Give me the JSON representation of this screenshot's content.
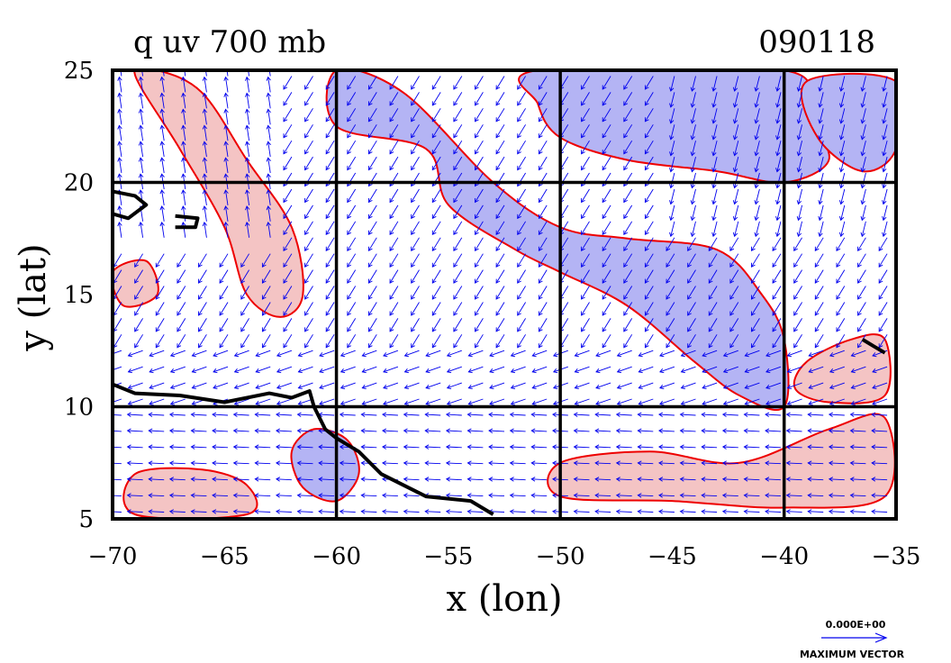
{
  "chart_data": {
    "type": "vector-contour-map",
    "title": "q uv 700 mb",
    "date_label": "090118",
    "xlabel": "x (lon)",
    "ylabel": "y (lat)",
    "xlim": [
      -70,
      -35
    ],
    "ylim": [
      5,
      25
    ],
    "xticks": [
      -70,
      -65,
      -60,
      -55,
      -50,
      -45,
      -40,
      -35
    ],
    "yticks": [
      5,
      10,
      15,
      20,
      25
    ],
    "grid_lines_x": [
      -60,
      -50,
      -40
    ],
    "grid_lines_y": [
      10,
      20
    ],
    "vector_legend": {
      "value": "0.000E+00",
      "label": "MAXIMUM VECTOR"
    },
    "colors": {
      "vectors": "#0000ee",
      "contour_lines": "#ee0000",
      "low_fill": "#b4b4f4",
      "high_fill": "#f4c4c4",
      "coastline": "#000000"
    },
    "regions": {
      "low": [
        [
          [
            -60,
            22.5
          ],
          [
            -56,
            21.5
          ],
          [
            -55,
            19
          ],
          [
            -52,
            17
          ],
          [
            -50,
            16
          ],
          [
            -47,
            14.5
          ],
          [
            -44,
            12
          ],
          [
            -42,
            10.5
          ],
          [
            -40,
            10
          ],
          [
            -40,
            13
          ],
          [
            -41,
            15
          ],
          [
            -43,
            17
          ],
          [
            -47,
            17.5
          ],
          [
            -50,
            18
          ],
          [
            -53,
            20
          ],
          [
            -57,
            24
          ],
          [
            -60,
            25
          ]
        ],
        [
          [
            -51,
            25
          ],
          [
            -40,
            25
          ],
          [
            -39,
            23
          ],
          [
            -38,
            21
          ],
          [
            -40,
            20
          ],
          [
            -43,
            20.5
          ],
          [
            -47,
            21
          ],
          [
            -50,
            22
          ],
          [
            -51,
            23.5
          ]
        ],
        [
          [
            -39,
            24.5
          ],
          [
            -35,
            24.5
          ],
          [
            -35,
            21.5
          ],
          [
            -36.5,
            20.5
          ],
          [
            -38.5,
            22
          ]
        ],
        [
          [
            -61,
            9
          ],
          [
            -59.5,
            8.5
          ],
          [
            -59,
            7
          ],
          [
            -60,
            5.8
          ],
          [
            -61.5,
            6.4
          ],
          [
            -62,
            8
          ]
        ]
      ],
      "high": [
        [
          [
            -68,
            25
          ],
          [
            -66,
            24
          ],
          [
            -64,
            21
          ],
          [
            -62,
            18
          ],
          [
            -61.5,
            15
          ],
          [
            -62.5,
            14
          ],
          [
            -64,
            15
          ],
          [
            -65,
            18
          ],
          [
            -67,
            21.5
          ],
          [
            -69,
            24.8
          ]
        ],
        [
          [
            -50,
            7.5
          ],
          [
            -46,
            8
          ],
          [
            -42,
            7.5
          ],
          [
            -38,
            9
          ],
          [
            -35.5,
            9.5
          ],
          [
            -35.5,
            6
          ],
          [
            -40,
            5.5
          ],
          [
            -45,
            5.8
          ],
          [
            -50,
            6
          ]
        ],
        [
          [
            -39,
            12
          ],
          [
            -37,
            13
          ],
          [
            -35.5,
            13
          ],
          [
            -35.5,
            10.5
          ],
          [
            -38,
            10.2
          ],
          [
            -39.5,
            10.8
          ]
        ],
        [
          [
            -69,
            7
          ],
          [
            -66,
            7.2
          ],
          [
            -64,
            6.5
          ],
          [
            -64,
            5.2
          ],
          [
            -69,
            5.2
          ]
        ],
        [
          [
            -70,
            16
          ],
          [
            -68.5,
            16.5
          ],
          [
            -68,
            15
          ],
          [
            -69.5,
            14.5
          ]
        ]
      ]
    },
    "coastline": [
      [
        [
          -70,
          11
        ],
        [
          -69,
          10.6
        ],
        [
          -67,
          10.5
        ],
        [
          -65,
          10.2
        ],
        [
          -63,
          10.6
        ],
        [
          -62,
          10.4
        ],
        [
          -61.2,
          10.7
        ],
        [
          -61,
          10
        ],
        [
          -60.5,
          9
        ],
        [
          -60,
          8.6
        ],
        [
          -59,
          8
        ],
        [
          -58,
          7
        ],
        [
          -56,
          6
        ],
        [
          -54,
          5.8
        ],
        [
          -53,
          5.2
        ]
      ],
      [
        [
          -70,
          19.6
        ],
        [
          -69,
          19.4
        ],
        [
          -68.5,
          19.0
        ],
        [
          -69.3,
          18.4
        ],
        [
          -70,
          18.6
        ]
      ],
      [
        [
          -67.2,
          18.5
        ],
        [
          -66.2,
          18.4
        ],
        [
          -66.3,
          18.0
        ],
        [
          -67.2,
          18.0
        ]
      ],
      [
        [
          -36.5,
          13
        ],
        [
          -36,
          12.7
        ],
        [
          -35.5,
          12.4
        ]
      ]
    ]
  }
}
